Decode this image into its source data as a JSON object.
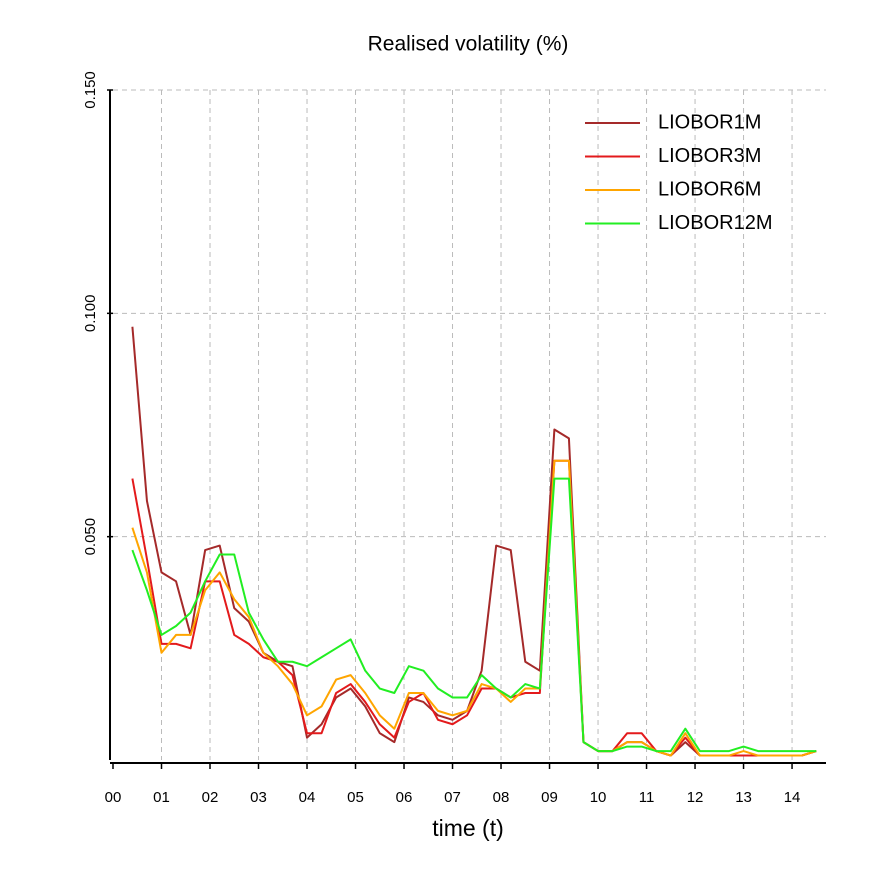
{
  "chart_data": {
    "type": "line",
    "title": "Realised volatility (%)",
    "xlabel": "time (t)",
    "x": [
      0.4,
      0.7,
      1.0,
      1.3,
      1.6,
      1.9,
      2.2,
      2.5,
      2.8,
      3.1,
      3.4,
      3.7,
      4.0,
      4.3,
      4.6,
      4.9,
      5.2,
      5.5,
      5.8,
      6.1,
      6.4,
      6.7,
      7.0,
      7.3,
      7.6,
      7.9,
      8.2,
      8.5,
      8.8,
      9.1,
      9.4,
      9.7,
      10.0,
      10.3,
      10.6,
      10.9,
      11.2,
      11.5,
      11.8,
      12.1,
      12.4,
      12.7,
      13.0,
      13.3,
      13.6,
      13.9,
      14.2,
      14.5
    ],
    "series": [
      {
        "name": "LIOBOR1M",
        "color": "#a52a2a",
        "values": [
          0.097,
          0.058,
          0.042,
          0.04,
          0.028,
          0.047,
          0.048,
          0.034,
          0.031,
          0.024,
          0.022,
          0.021,
          0.005,
          0.008,
          0.014,
          0.016,
          0.012,
          0.006,
          0.004,
          0.014,
          0.013,
          0.01,
          0.009,
          0.011,
          0.02,
          0.048,
          0.047,
          0.022,
          0.02,
          0.074,
          0.072,
          0.004,
          0.002,
          0.002,
          0.004,
          0.004,
          0.002,
          0.001,
          0.004,
          0.001,
          0.001,
          0.001,
          0.001,
          0.001,
          0.001,
          0.001,
          0.001,
          0.002
        ]
      },
      {
        "name": "LIOBOR3M",
        "color": "#e31a1c",
        "values": [
          0.063,
          0.045,
          0.026,
          0.026,
          0.025,
          0.04,
          0.04,
          0.028,
          0.026,
          0.023,
          0.022,
          0.019,
          0.006,
          0.006,
          0.015,
          0.017,
          0.013,
          0.008,
          0.005,
          0.013,
          0.015,
          0.009,
          0.008,
          0.01,
          0.016,
          0.016,
          0.014,
          0.015,
          0.015,
          0.067,
          0.067,
          0.004,
          0.002,
          0.002,
          0.006,
          0.006,
          0.002,
          0.001,
          0.005,
          0.001,
          0.001,
          0.001,
          0.001,
          0.001,
          0.001,
          0.001,
          0.001,
          0.002
        ]
      },
      {
        "name": "LIOBOR6M",
        "color": "#ffa500",
        "values": [
          0.052,
          0.042,
          0.024,
          0.028,
          0.028,
          0.038,
          0.042,
          0.036,
          0.032,
          0.024,
          0.021,
          0.017,
          0.01,
          0.012,
          0.018,
          0.019,
          0.015,
          0.01,
          0.007,
          0.015,
          0.015,
          0.011,
          0.01,
          0.011,
          0.017,
          0.016,
          0.013,
          0.016,
          0.016,
          0.067,
          0.067,
          0.004,
          0.002,
          0.002,
          0.004,
          0.004,
          0.002,
          0.001,
          0.006,
          0.001,
          0.001,
          0.001,
          0.002,
          0.001,
          0.001,
          0.001,
          0.001,
          0.002
        ]
      },
      {
        "name": "LIOBOR12M",
        "color": "#22ee22",
        "values": [
          0.047,
          0.038,
          0.028,
          0.03,
          0.033,
          0.04,
          0.046,
          0.046,
          0.033,
          0.027,
          0.022,
          0.022,
          0.021,
          0.023,
          0.025,
          0.027,
          0.02,
          0.016,
          0.015,
          0.021,
          0.02,
          0.016,
          0.014,
          0.014,
          0.019,
          0.016,
          0.014,
          0.017,
          0.016,
          0.063,
          0.063,
          0.004,
          0.002,
          0.002,
          0.003,
          0.003,
          0.002,
          0.002,
          0.007,
          0.002,
          0.002,
          0.002,
          0.003,
          0.002,
          0.002,
          0.002,
          0.002,
          0.002
        ]
      }
    ],
    "xlim": [
      0,
      14.7
    ],
    "xticks": [
      {
        "value": 0,
        "label": "00"
      },
      {
        "value": 1,
        "label": "01"
      },
      {
        "value": 2,
        "label": "02"
      },
      {
        "value": 3,
        "label": "03"
      },
      {
        "value": 4,
        "label": "04"
      },
      {
        "value": 5,
        "label": "05"
      },
      {
        "value": 6,
        "label": "06"
      },
      {
        "value": 7,
        "label": "07"
      },
      {
        "value": 8,
        "label": "08"
      },
      {
        "value": 9,
        "label": "09"
      },
      {
        "value": 10,
        "label": "10"
      },
      {
        "value": 11,
        "label": "11"
      },
      {
        "value": 12,
        "label": "12"
      },
      {
        "value": 13,
        "label": "13"
      },
      {
        "value": 14,
        "label": "14"
      }
    ],
    "ylim": [
      0,
      0.15
    ],
    "yticks": [
      {
        "value": 0.05,
        "label": "0.050"
      },
      {
        "value": 0.1,
        "label": "0.100"
      },
      {
        "value": 0.15,
        "label": "0.150"
      }
    ],
    "grid": true,
    "legend": "top-right"
  }
}
